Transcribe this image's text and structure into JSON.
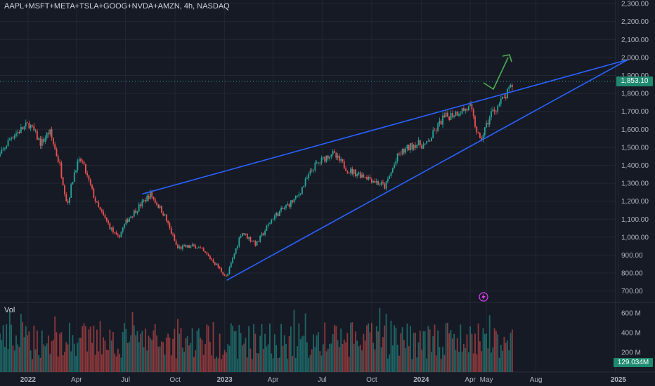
{
  "header": {
    "symbol_line": "AAPL+MSFT+META+TSLA+GOOG+NVDA+AMZN, 4h, NASDAQ"
  },
  "volume_pane": {
    "label": "Vol"
  },
  "last_price": {
    "label": "1,853.10"
  },
  "last_volume": {
    "label": "129.034M"
  },
  "colors": {
    "up": "#26a69a",
    "down": "#ef5350",
    "trendline": "#2962ff",
    "arrow": "#4caf50",
    "bg": "#161a25",
    "grid": "#232733"
  },
  "icons": {
    "flash_marker": "lightning-circle-icon"
  },
  "chart_data": {
    "type": "candlestick",
    "price_axis": {
      "ticks": [
        "2,300.00",
        "2,200.00",
        "2,100.00",
        "2,000.00",
        "1,900.00",
        "1,800.00",
        "1,700.00",
        "1,600.00",
        "1,500.00",
        "1,400.00",
        "1,300.00",
        "1,200.00",
        "1,100.00",
        "1,000.00",
        "900.00",
        "800.00",
        "700.00"
      ],
      "range": [
        640,
        2300
      ]
    },
    "volume_axis": {
      "ticks": [
        "600M",
        "400M",
        "200M"
      ],
      "range": [
        0,
        700
      ]
    },
    "time_axis": {
      "ticks": [
        "2022",
        "Apr",
        "Jul",
        "Oct",
        "2023",
        "Apr",
        "Jul",
        "Oct",
        "2024",
        "Apr",
        "May",
        "Aug",
        "2025"
      ]
    },
    "price_path": [
      {
        "t": "2021-11",
        "p": 1410
      },
      {
        "t": "2021-12",
        "p": 1560
      },
      {
        "t": "2022-01-03",
        "p": 1630
      },
      {
        "t": "2022-01-25",
        "p": 1520
      },
      {
        "t": "2022-02-10",
        "p": 1590
      },
      {
        "t": "2022-03-01",
        "p": 1400
      },
      {
        "t": "2022-03-15",
        "p": 1180
      },
      {
        "t": "2022-03-30",
        "p": 1390
      },
      {
        "t": "2022-04-10",
        "p": 1430
      },
      {
        "t": "2022-05-10",
        "p": 1170
      },
      {
        "t": "2022-06-16",
        "p": 990
      },
      {
        "t": "2022-07-05",
        "p": 1100
      },
      {
        "t": "2022-08-16",
        "p": 1240
      },
      {
        "t": "2022-09-10",
        "p": 1130
      },
      {
        "t": "2022-10-05",
        "p": 940
      },
      {
        "t": "2022-11-10",
        "p": 950
      },
      {
        "t": "2022-12-10",
        "p": 870
      },
      {
        "t": "2023-01-05",
        "p": 775
      },
      {
        "t": "2023-02-01",
        "p": 1030
      },
      {
        "t": "2023-03-01",
        "p": 960
      },
      {
        "t": "2023-04-01",
        "p": 1110
      },
      {
        "t": "2023-05-15",
        "p": 1220
      },
      {
        "t": "2023-06-15",
        "p": 1390
      },
      {
        "t": "2023-07-18",
        "p": 1470
      },
      {
        "t": "2023-08-20",
        "p": 1370
      },
      {
        "t": "2023-09-20",
        "p": 1340
      },
      {
        "t": "2023-10-26",
        "p": 1280
      },
      {
        "t": "2023-11-20",
        "p": 1460
      },
      {
        "t": "2023-12-20",
        "p": 1520
      },
      {
        "t": "2024-01-10",
        "p": 1510
      },
      {
        "t": "2024-02-10",
        "p": 1660
      },
      {
        "t": "2024-03-10",
        "p": 1700
      },
      {
        "t": "2024-04-01",
        "p": 1720
      },
      {
        "t": "2024-04-19",
        "p": 1530
      },
      {
        "t": "2024-05-10",
        "p": 1690
      },
      {
        "t": "2024-06-05",
        "p": 1780
      },
      {
        "t": "2024-06-20",
        "p": 1853.1
      }
    ],
    "annotations": {
      "upper_trendline": [
        {
          "t": "2022-08-01",
          "p": 1240
        },
        {
          "t": "2025-01-15",
          "p": 1985
        }
      ],
      "lower_trendline": [
        {
          "t": "2023-01-05",
          "p": 760
        },
        {
          "t": "2025-01-20",
          "p": 1990
        }
      ],
      "projection_arrow": [
        {
          "t": "2024-06-20",
          "p": 1850
        },
        {
          "t": "2024-07-10",
          "p": 1810
        },
        {
          "t": "2024-08-01",
          "p": 1990
        }
      ]
    }
  }
}
